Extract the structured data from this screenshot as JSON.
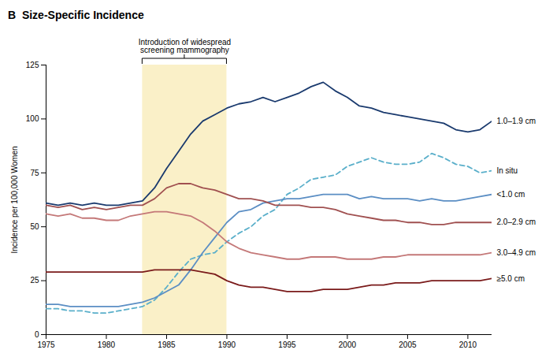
{
  "chart_data": {
    "type": "line",
    "title": "B  Size-Specific Incidence",
    "ylabel": "Incidence per 100,000 Women",
    "xlim": [
      1975,
      2012
    ],
    "ylim": [
      0,
      125
    ],
    "xticks": [
      1975,
      1980,
      1985,
      1990,
      1995,
      2000,
      2005,
      2010
    ],
    "yticks": [
      0,
      25,
      50,
      75,
      100,
      125
    ],
    "grid": false,
    "annotation": {
      "text": "Introduction of widespread\nscreening mammography",
      "x_range": [
        1983,
        1990
      ],
      "color": "#FAF0C8"
    },
    "x": [
      1975,
      1976,
      1977,
      1978,
      1979,
      1980,
      1981,
      1982,
      1983,
      1984,
      1985,
      1986,
      1987,
      1988,
      1989,
      1990,
      1991,
      1992,
      1993,
      1994,
      1995,
      1996,
      1997,
      1998,
      1999,
      2000,
      2001,
      2002,
      2003,
      2004,
      2005,
      2006,
      2007,
      2008,
      2009,
      2010,
      2011,
      2012
    ],
    "series": [
      {
        "name": "1.0–1.9 cm",
        "color": "#1a3a6e",
        "line_style": "solid",
        "values": [
          61,
          60,
          61,
          60,
          61,
          60,
          60,
          61,
          62,
          68,
          77,
          85,
          93,
          99,
          102,
          105,
          107,
          108,
          110,
          108,
          110,
          112,
          115,
          117,
          113,
          110,
          106,
          105,
          103,
          102,
          101,
          100,
          99,
          98,
          95,
          94,
          95,
          99
        ]
      },
      {
        "name": "In situ",
        "color": "#5aafca",
        "line_style": "dashed",
        "values": [
          12,
          12,
          11,
          11,
          10,
          10,
          11,
          12,
          13,
          16,
          22,
          29,
          35,
          37,
          38,
          43,
          47,
          50,
          55,
          58,
          65,
          68,
          72,
          73,
          74,
          78,
          80,
          82,
          80,
          79,
          79,
          80,
          84,
          82,
          79,
          78,
          75,
          76
        ]
      },
      {
        "name": "<1.0 cm",
        "color": "#5b8ec4",
        "line_style": "solid",
        "values": [
          14,
          14,
          13,
          13,
          13,
          13,
          13,
          14,
          15,
          17,
          20,
          23,
          30,
          38,
          45,
          52,
          57,
          58,
          61,
          62,
          63,
          63,
          64,
          65,
          65,
          65,
          63,
          64,
          63,
          63,
          63,
          62,
          63,
          62,
          62,
          63,
          64,
          65
        ]
      },
      {
        "name": "2.0–2.9 cm",
        "color": "#a05050",
        "line_style": "solid",
        "values": [
          60,
          59,
          60,
          58,
          59,
          58,
          59,
          60,
          60,
          63,
          68,
          70,
          70,
          68,
          67,
          65,
          63,
          63,
          62,
          60,
          60,
          60,
          59,
          59,
          58,
          56,
          55,
          54,
          53,
          53,
          52,
          52,
          51,
          51,
          52,
          52,
          52,
          52
        ]
      },
      {
        "name": "3.0–4.9 cm",
        "color": "#c47878",
        "line_style": "solid",
        "values": [
          56,
          55,
          56,
          54,
          54,
          53,
          53,
          55,
          56,
          57,
          57,
          56,
          55,
          52,
          48,
          43,
          40,
          38,
          37,
          36,
          35,
          35,
          36,
          36,
          36,
          35,
          35,
          35,
          36,
          36,
          37,
          37,
          37,
          37,
          37,
          37,
          37,
          38
        ]
      },
      {
        "name": "≥5.0 cm",
        "color": "#7a1a1a",
        "line_style": "solid",
        "values": [
          29,
          29,
          29,
          29,
          29,
          29,
          29,
          29,
          29,
          30,
          30,
          30,
          30,
          29,
          28,
          25,
          23,
          22,
          22,
          21,
          20,
          20,
          20,
          21,
          21,
          21,
          22,
          23,
          23,
          24,
          24,
          24,
          25,
          25,
          25,
          25,
          25,
          26
        ]
      }
    ]
  }
}
